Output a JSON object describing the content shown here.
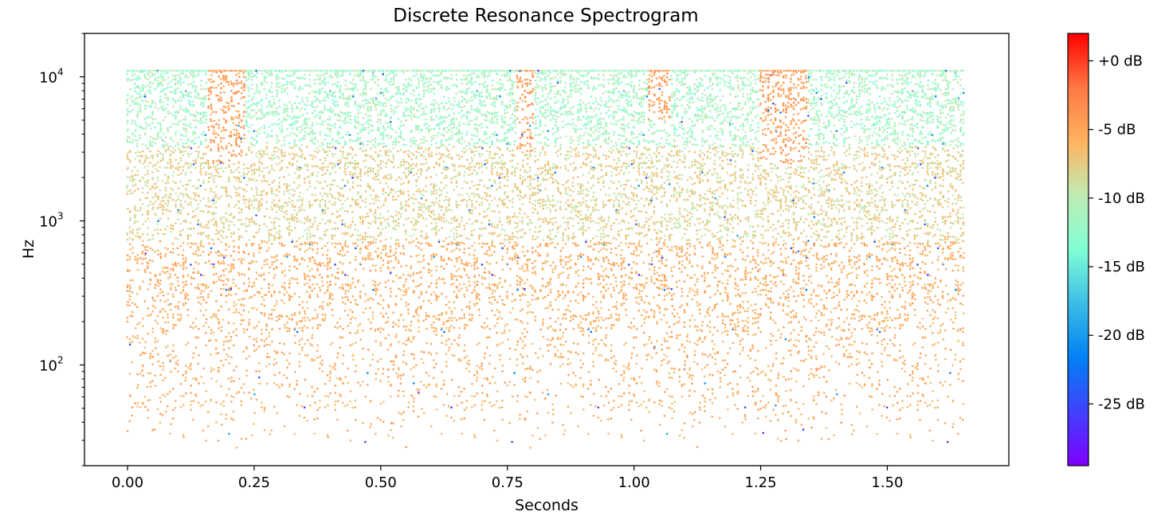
{
  "chart_data": {
    "type": "scatter",
    "title": "Discrete Resonance Spectrogram",
    "xlabel": "Seconds",
    "ylabel": "Hz",
    "x_scale": "linear",
    "y_scale": "log",
    "xlim": [
      -0.085,
      1.74
    ],
    "ylim": [
      20,
      20000
    ],
    "grid": false,
    "x_ticks": [
      0.0,
      0.25,
      0.5,
      0.75,
      1.0,
      1.25,
      1.5
    ],
    "x_tick_labels": [
      "0.00",
      "0.25",
      "0.50",
      "0.75",
      "1.00",
      "1.25",
      "1.50"
    ],
    "y_ticks": [
      100,
      1000,
      10000
    ],
    "y_tick_labels": [
      {
        "base": "10",
        "exp": "2"
      },
      {
        "base": "10",
        "exp": "3"
      },
      {
        "base": "10",
        "exp": "4"
      }
    ],
    "time_range": [
      0.0,
      1.65
    ],
    "freq_max": 11025,
    "colormap": "rainbow",
    "colorbar": {
      "range_db": [
        -29.5,
        2.0
      ],
      "ticks": [
        0,
        -5,
        -10,
        -15,
        -20,
        -25
      ],
      "tick_labels": [
        "+0 dB",
        "-5 dB",
        "-10 dB",
        "-15 dB",
        "-20 dB",
        "-25 dB"
      ]
    },
    "bright_regions": [
      {
        "time": [
          0.16,
          0.23
        ],
        "freq": [
          2500,
          11025
        ]
      },
      {
        "time": [
          0.77,
          0.8
        ],
        "freq": [
          3000,
          11025
        ]
      },
      {
        "time": [
          1.25,
          1.34
        ],
        "freq": [
          2500,
          11025
        ]
      },
      {
        "time": [
          1.03,
          1.07
        ],
        "freq": [
          5000,
          11025
        ]
      }
    ]
  }
}
